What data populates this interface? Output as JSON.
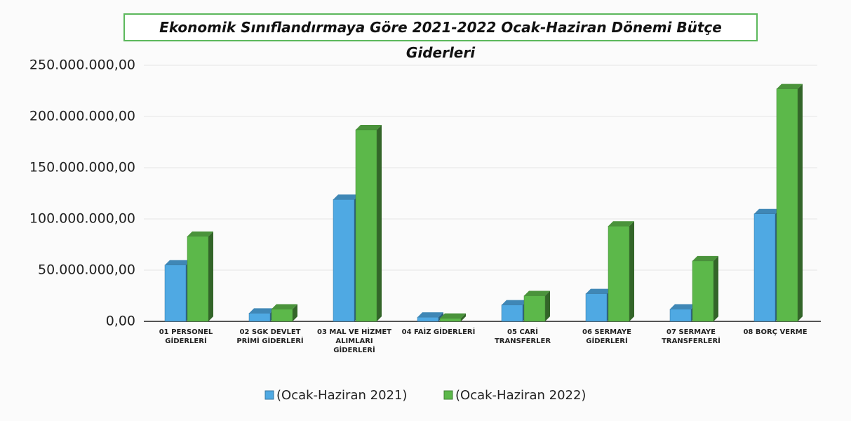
{
  "chart_data": {
    "type": "bar",
    "title": "Ekonomik Sınıflandırmaya Göre 2021-2022 Ocak-Haziran Dönemi Bütçe Giderleri",
    "categories": [
      "01 PERSONEL GİDERLERİ",
      "02 SGK DEVLET PRİMİ GİDERLERİ",
      "03 MAL VE HİZMET ALIMLARI GİDERLERİ",
      "04 FAİZ GİDERLERİ",
      "05 CARİ TRANSFERLER",
      "06 SERMAYE GİDERLERİ",
      "07 SERMAYE TRANSFERLERİ",
      "08 BORÇ VERME"
    ],
    "series": [
      {
        "name": "(Ocak-Haziran 2021)",
        "color": "#4fa9e3",
        "values": [
          55000000,
          8000000,
          119000000,
          4000000,
          16000000,
          27000000,
          12000000,
          105000000
        ]
      },
      {
        "name": "(Ocak-Haziran 2022)",
        "color": "#5cb84a",
        "values": [
          83000000,
          12000000,
          187000000,
          3000000,
          25000000,
          93000000,
          59000000,
          227000000
        ]
      }
    ],
    "ylim": [
      0,
      250000000
    ],
    "yticks": [
      {
        "value": 0,
        "label": "0,00"
      },
      {
        "value": 50000000,
        "label": "50.000.000,00"
      },
      {
        "value": 100000000,
        "label": "100.000.000,00"
      },
      {
        "value": 150000000,
        "label": "150.000.000,00"
      },
      {
        "value": 200000000,
        "label": "200.000.000,00"
      },
      {
        "value": 250000000,
        "label": "250.000.000,00"
      }
    ],
    "grid": true,
    "legend": "bottom"
  }
}
